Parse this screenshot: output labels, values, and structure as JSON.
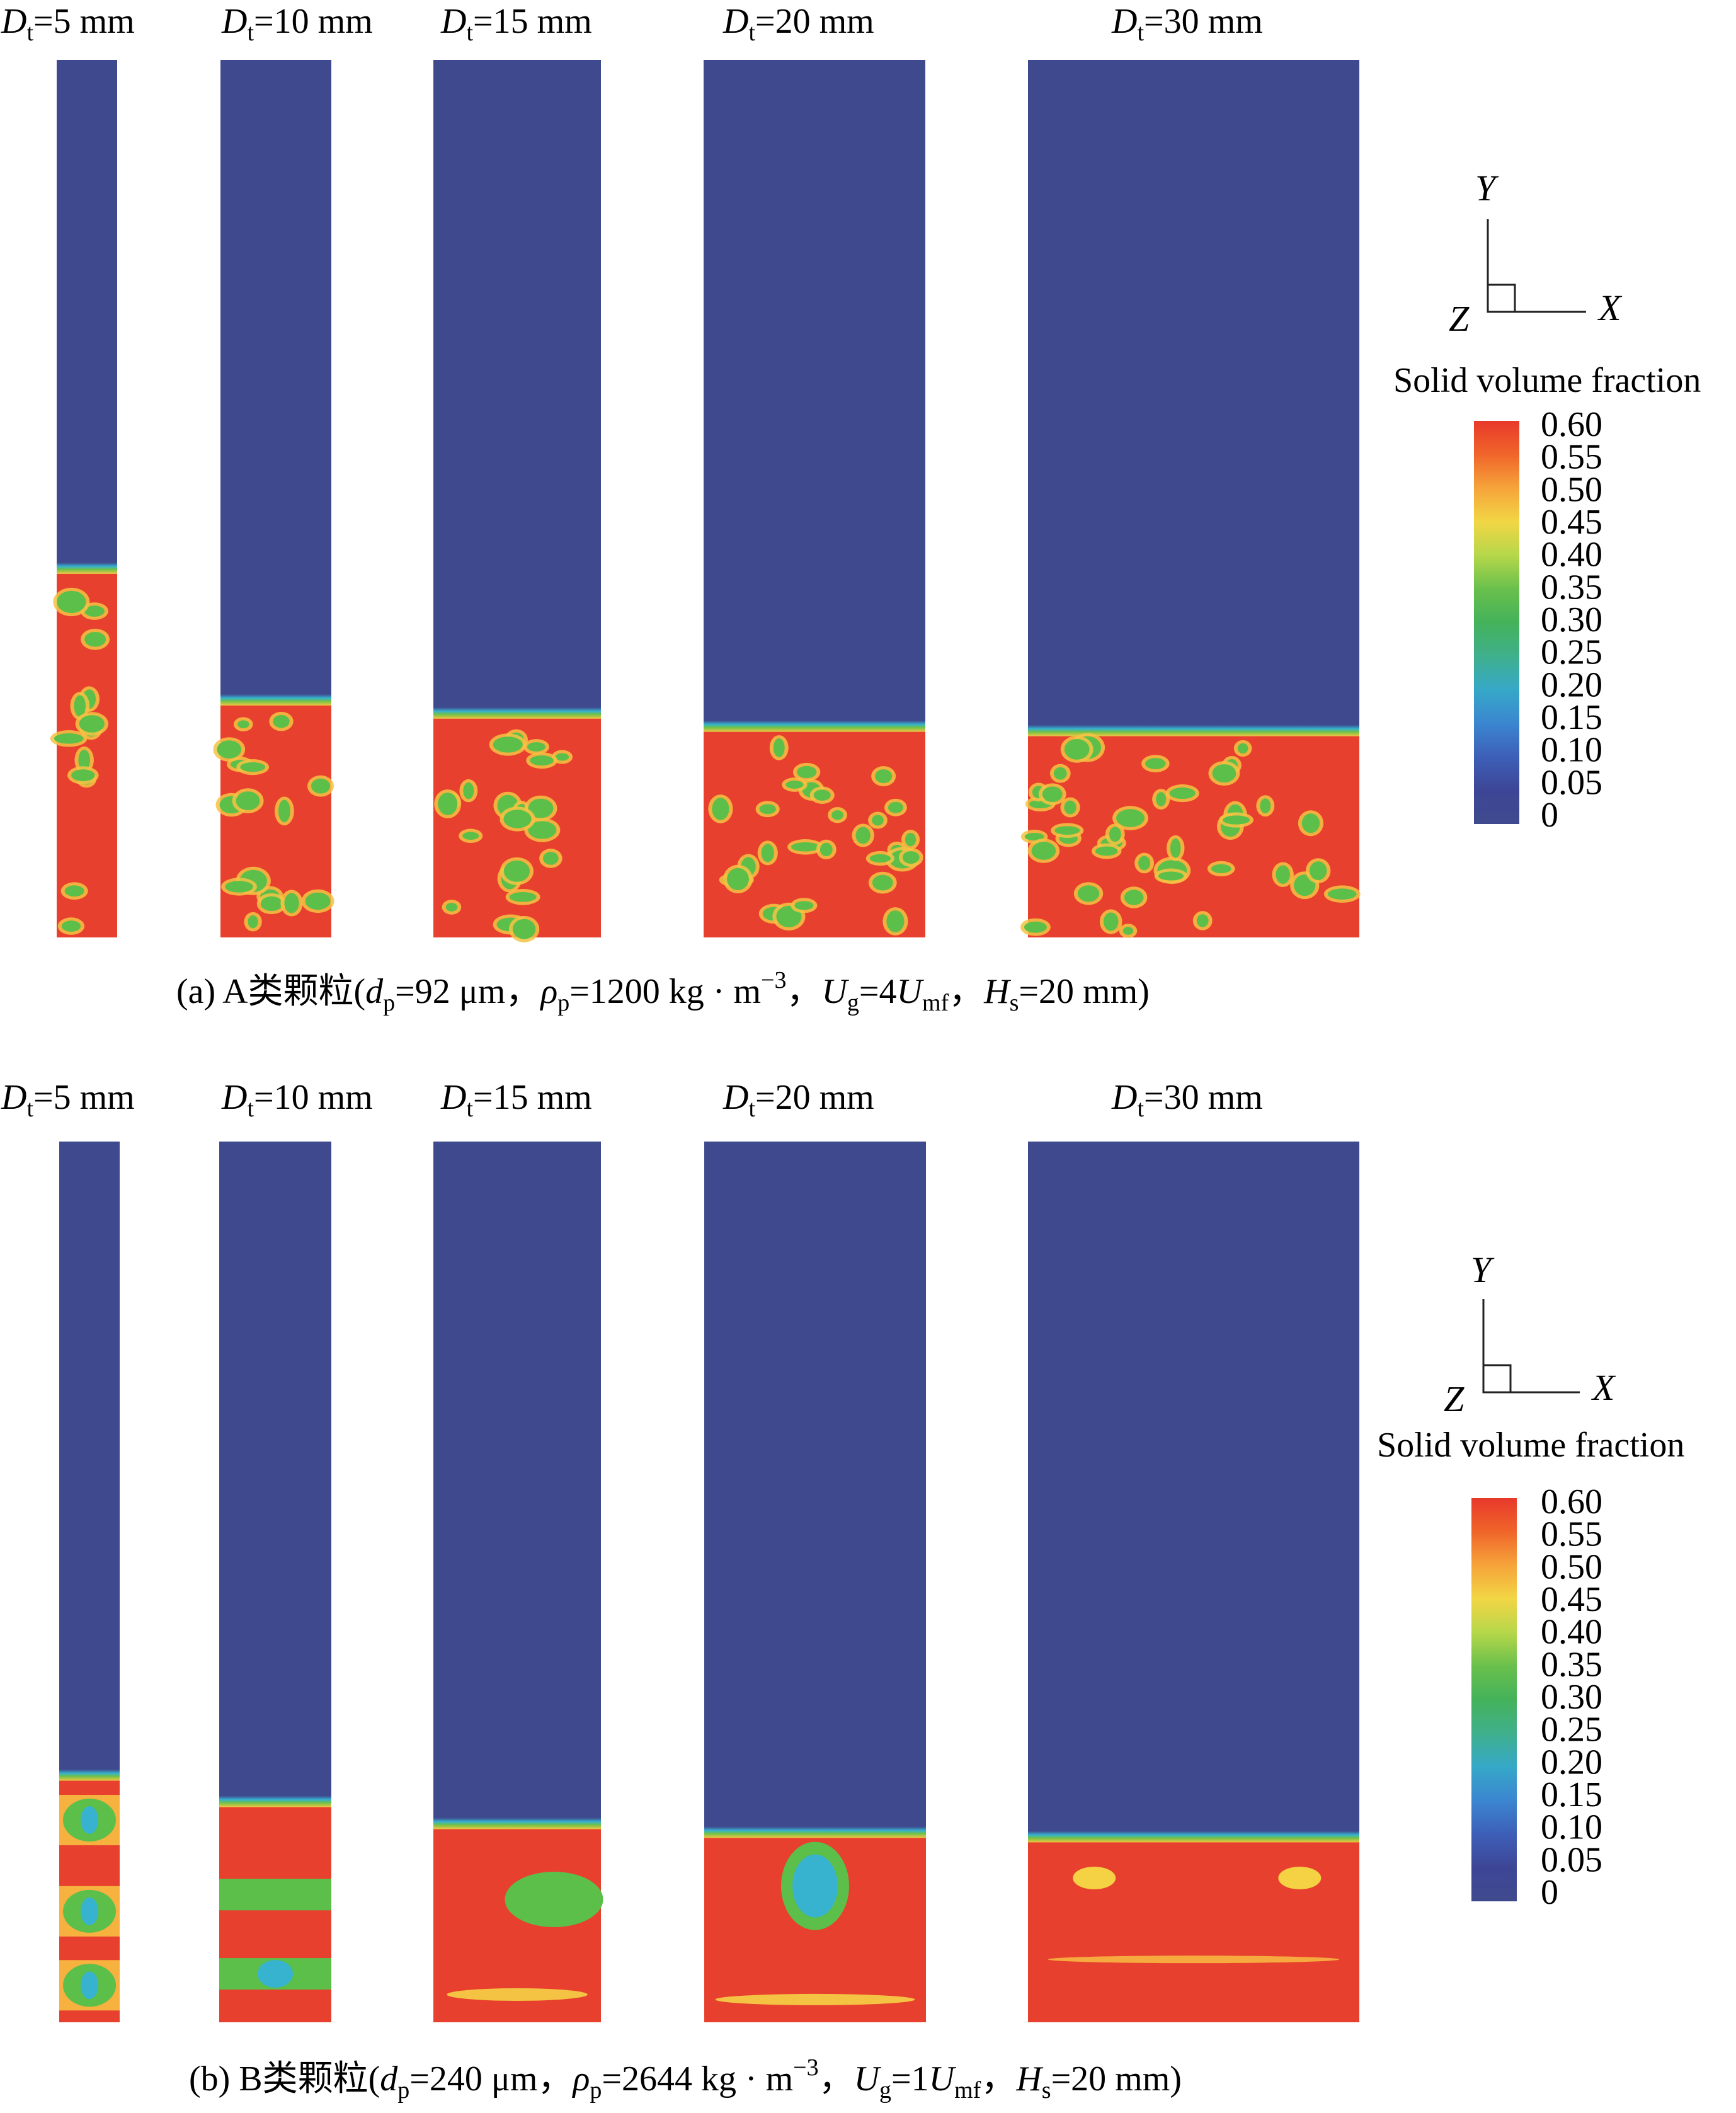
{
  "panels": [
    {
      "id": "a",
      "caption": {
        "prefix": "(a) A类颗粒(",
        "dp_sym": "d",
        "dp_sub": "p",
        "dp_val": "=92 μm，",
        "rho_sym": "ρ",
        "rho_sub": "p",
        "rho_val": "=1200 kg · m",
        "rho_sup": "−3",
        "ug_sep": "，",
        "ug_sym": "U",
        "ug_sub": "g",
        "ug_val": "=4",
        "umf_sym": "U",
        "umf_sub": "mf",
        "hs_sep": "，",
        "hs_sym": "H",
        "hs_sub": "s",
        "hs_val": "=20 mm)"
      },
      "columns": [
        {
          "label_sym": "D",
          "label_sub": "t",
          "label_val": "=5 mm",
          "bed_height_fraction": 0.42
        },
        {
          "label_sym": "D",
          "label_sub": "t",
          "label_val": "=10 mm",
          "bed_height_fraction": 0.27
        },
        {
          "label_sym": "D",
          "label_sub": "t",
          "label_val": "=15 mm",
          "bed_height_fraction": 0.255
        },
        {
          "label_sym": "D",
          "label_sub": "t",
          "label_val": "=20 mm",
          "bed_height_fraction": 0.24
        },
        {
          "label_sym": "D",
          "label_sub": "t",
          "label_val": "=30 mm",
          "bed_height_fraction": 0.235
        }
      ]
    },
    {
      "id": "b",
      "caption": {
        "prefix": "(b) B类颗粒(",
        "dp_sym": "d",
        "dp_sub": "p",
        "dp_val": "=240 μm，",
        "rho_sym": "ρ",
        "rho_sub": "p",
        "rho_val": "=2644 kg · m",
        "rho_sup": "−3",
        "ug_sep": "，",
        "ug_sym": "U",
        "ug_sub": "g",
        "ug_val": "=1",
        "umf_sym": "U",
        "umf_sub": "mf",
        "hs_sep": "，",
        "hs_sym": "H",
        "hs_sub": "s",
        "hs_val": "=20 mm)"
      },
      "columns": [
        {
          "label_sym": "D",
          "label_sub": "t",
          "label_val": "=5 mm",
          "bed_height_fraction": 0.28
        },
        {
          "label_sym": "D",
          "label_sub": "t",
          "label_val": "=10 mm",
          "bed_height_fraction": 0.25
        },
        {
          "label_sym": "D",
          "label_sub": "t",
          "label_val": "=15 mm",
          "bed_height_fraction": 0.225
        },
        {
          "label_sym": "D",
          "label_sub": "t",
          "label_val": "=20 mm",
          "bed_height_fraction": 0.215
        },
        {
          "label_sym": "D",
          "label_sub": "t",
          "label_val": "=30 mm",
          "bed_height_fraction": 0.21
        }
      ]
    }
  ],
  "axes_triad": {
    "y": "Y",
    "x": "X",
    "z": "Z"
  },
  "colorbar": {
    "title": "Solid volume fraction",
    "ticks": [
      "0.60",
      "0.55",
      "0.50",
      "0.45",
      "0.40",
      "0.35",
      "0.30",
      "0.25",
      "0.20",
      "0.15",
      "0.10",
      "0.05",
      "0"
    ],
    "stops": [
      "#e8392b",
      "#f0652a",
      "#f6a43a",
      "#f2d645",
      "#b6d74a",
      "#69c04c",
      "#44b25a",
      "#3fb08c",
      "#36a8c8",
      "#3b86d0",
      "#3d5fb8",
      "#3d4696",
      "#3f4a8e"
    ]
  },
  "colors": {
    "gas": "#3f4a8e",
    "bed": "#e8402e",
    "interface": "#37b3cf",
    "bubble": "#5cbf4a"
  }
}
